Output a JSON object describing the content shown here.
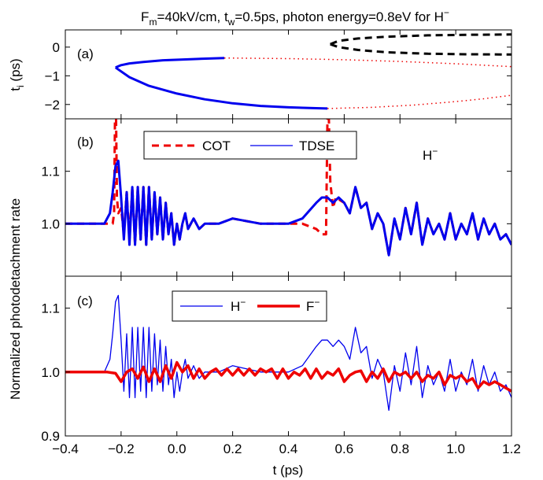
{
  "figure": {
    "title": {
      "p1": "F",
      "s1": "m",
      "p2": "=40kV/cm, t",
      "s2": "w",
      "p3": "=0.5ps, photon energy=0.8eV for H",
      "sup": "−"
    },
    "ylabel": "Normalized photodetachment rate"
  },
  "chart_data": [
    {
      "panel": "(a)",
      "type": "line",
      "xlim": [
        -0.4,
        1.2
      ],
      "ylim": [
        -2.5,
        0.6
      ],
      "yticks": [
        "−2",
        "−1",
        "0"
      ],
      "ylabel": {
        "main": "t",
        "sub": "i",
        "rest": " (ps)"
      },
      "series": [
        {
          "style": "solid-blue",
          "color": "#0000ee",
          "x": [
            0.17,
            0.05,
            -0.05,
            -0.12,
            -0.17,
            -0.2,
            -0.22
          ],
          "y": [
            -0.38,
            -0.42,
            -0.46,
            -0.52,
            -0.57,
            -0.63,
            -0.71
          ]
        },
        {
          "style": "solid-blue",
          "color": "#0000ee",
          "x": [
            -0.22,
            -0.17,
            -0.1,
            0.0,
            0.1,
            0.2,
            0.3,
            0.4,
            0.5,
            0.54
          ],
          "y": [
            -0.71,
            -1.05,
            -1.35,
            -1.62,
            -1.82,
            -1.96,
            -2.05,
            -2.1,
            -2.13,
            -2.14
          ]
        },
        {
          "style": "dotted-red",
          "color": "#ee0000",
          "x": [
            0.17,
            0.4,
            0.6,
            0.8,
            1.0,
            1.2
          ],
          "y": [
            -0.38,
            -0.4,
            -0.44,
            -0.5,
            -0.58,
            -0.68
          ]
        },
        {
          "style": "dotted-red",
          "color": "#ee0000",
          "x": [
            0.54,
            0.7,
            0.85,
            1.0,
            1.1,
            1.2
          ],
          "y": [
            -2.14,
            -2.1,
            -2.02,
            -1.9,
            -1.8,
            -1.68
          ]
        },
        {
          "style": "dashed-black",
          "color": "#000000",
          "x": [
            0.55,
            0.58,
            0.65,
            0.75,
            0.9,
            1.05,
            1.2
          ],
          "y": [
            0.1,
            0.22,
            0.3,
            0.36,
            0.41,
            0.43,
            0.44
          ]
        },
        {
          "style": "dashed-black",
          "color": "#000000",
          "x": [
            0.55,
            0.58,
            0.65,
            0.75,
            0.9,
            1.05,
            1.2
          ],
          "y": [
            0.1,
            0.0,
            -0.1,
            -0.18,
            -0.23,
            -0.25,
            -0.26
          ]
        }
      ]
    },
    {
      "panel": "(b)",
      "type": "line",
      "xlim": [
        -0.4,
        1.2
      ],
      "ylim": [
        0.9,
        1.2
      ],
      "yticks": [
        "1.0",
        "1.1"
      ],
      "annotation": {
        "main": "H",
        "sup": "−"
      },
      "legend": [
        "COT",
        "TDSE"
      ],
      "series": [
        {
          "name": "COT",
          "style": "dashed-red",
          "color": "#ee0000",
          "x": [
            -0.4,
            -0.3,
            -0.25,
            -0.23,
            -0.225,
            -0.222,
            -0.218,
            -0.215,
            -0.21,
            -0.2,
            -0.19,
            -0.18,
            -0.17,
            -0.16,
            -0.15,
            -0.14,
            -0.13,
            -0.12,
            -0.11,
            -0.1,
            -0.09,
            -0.08,
            -0.07,
            -0.06,
            -0.05,
            -0.04,
            -0.03,
            -0.02,
            -0.01,
            0.0,
            0.01,
            0.02,
            0.03,
            0.04,
            0.06,
            0.08,
            0.1,
            0.15,
            0.2,
            0.3,
            0.4,
            0.45,
            0.5,
            0.52,
            0.535,
            0.54,
            0.545,
            0.55,
            0.56,
            0.57,
            0.6,
            0.62,
            0.64,
            0.66,
            0.68,
            0.7,
            0.72,
            0.74,
            0.76,
            0.78,
            0.8,
            0.82,
            0.84,
            0.86,
            0.88,
            0.9,
            0.92,
            0.94,
            0.96,
            0.98,
            1.0,
            1.02,
            1.04,
            1.06,
            1.08,
            1.1,
            1.12,
            1.14,
            1.16,
            1.18,
            1.2
          ],
          "y": [
            1.0,
            1.0,
            1.0,
            1.0,
            1.02,
            1.2,
            1.2,
            1.05,
            1.02,
            1.03,
            0.98,
            1.06,
            0.97,
            1.07,
            0.96,
            1.07,
            0.97,
            1.07,
            0.96,
            1.07,
            0.97,
            1.06,
            0.98,
            1.05,
            0.97,
            1.04,
            0.98,
            1.02,
            0.96,
            1.0,
            0.97,
            1.0,
            1.02,
            0.99,
            1.01,
            0.99,
            1.0,
            1.0,
            1.01,
            1.0,
            1.0,
            1.0,
            0.99,
            0.98,
            0.98,
            1.2,
            1.2,
            1.08,
            1.03,
            1.05,
            1.04,
            1.02,
            1.07,
            1.03,
            1.04,
            0.99,
            1.02,
            1.0,
            0.94,
            1.01,
            0.97,
            1.03,
            0.98,
            1.04,
            0.96,
            1.01,
            0.98,
            1.0,
            0.97,
            1.02,
            0.97,
            1.0,
            0.98,
            1.02,
            0.97,
            1.01,
            0.98,
            1.0,
            0.97,
            0.98,
            0.96
          ]
        },
        {
          "name": "TDSE",
          "style": "solid-blue",
          "color": "#0000ee",
          "x": [
            -0.4,
            -0.3,
            -0.26,
            -0.24,
            -0.23,
            -0.22,
            -0.21,
            -0.2,
            -0.19,
            -0.18,
            -0.17,
            -0.16,
            -0.15,
            -0.14,
            -0.13,
            -0.12,
            -0.11,
            -0.1,
            -0.09,
            -0.08,
            -0.07,
            -0.06,
            -0.05,
            -0.04,
            -0.03,
            -0.02,
            -0.01,
            0.0,
            0.01,
            0.02,
            0.03,
            0.04,
            0.06,
            0.08,
            0.1,
            0.15,
            0.2,
            0.3,
            0.4,
            0.45,
            0.5,
            0.52,
            0.54,
            0.56,
            0.58,
            0.6,
            0.62,
            0.64,
            0.66,
            0.68,
            0.7,
            0.72,
            0.74,
            0.76,
            0.78,
            0.8,
            0.82,
            0.84,
            0.86,
            0.88,
            0.9,
            0.92,
            0.94,
            0.96,
            0.98,
            1.0,
            1.02,
            1.04,
            1.06,
            1.08,
            1.1,
            1.12,
            1.14,
            1.16,
            1.18,
            1.2
          ],
          "y": [
            1.0,
            1.0,
            1.0,
            1.02,
            1.06,
            1.11,
            1.12,
            1.05,
            0.97,
            1.06,
            0.96,
            1.07,
            0.96,
            1.07,
            0.97,
            1.07,
            0.96,
            1.07,
            0.97,
            1.06,
            0.98,
            1.05,
            0.97,
            1.04,
            0.98,
            1.02,
            0.96,
            1.0,
            0.97,
            1.0,
            1.02,
            0.99,
            1.01,
            0.99,
            1.0,
            1.0,
            1.01,
            1.0,
            1.0,
            1.01,
            1.04,
            1.05,
            1.05,
            1.04,
            1.05,
            1.04,
            1.02,
            1.07,
            1.03,
            1.04,
            0.99,
            1.02,
            1.0,
            0.94,
            1.01,
            0.97,
            1.03,
            0.98,
            1.04,
            0.96,
            1.01,
            0.98,
            1.0,
            0.97,
            1.02,
            0.97,
            1.0,
            0.98,
            1.02,
            0.97,
            1.01,
            0.98,
            1.0,
            0.97,
            0.98,
            0.96
          ]
        }
      ]
    },
    {
      "panel": "(c)",
      "type": "line",
      "xlim": [
        -0.4,
        1.2
      ],
      "ylim": [
        0.9,
        1.15
      ],
      "yticks": [
        "0.9",
        "1.0",
        "1.1"
      ],
      "xticks": [
        "−0.4",
        "−0.2",
        "0.0",
        "0.2",
        "0.4",
        "0.6",
        "0.8",
        "1.0",
        "1.2"
      ],
      "xlabel": "t (ps)",
      "legend": [
        {
          "main": "H",
          "sup": "−"
        },
        {
          "main": "F",
          "sup": "−"
        }
      ],
      "series": [
        {
          "name": "H−",
          "style": "solid-blue-thin",
          "color": "#0000ee",
          "x": [
            -0.4,
            -0.3,
            -0.26,
            -0.24,
            -0.23,
            -0.22,
            -0.21,
            -0.2,
            -0.19,
            -0.18,
            -0.17,
            -0.16,
            -0.15,
            -0.14,
            -0.13,
            -0.12,
            -0.11,
            -0.1,
            -0.09,
            -0.08,
            -0.07,
            -0.06,
            -0.05,
            -0.04,
            -0.03,
            -0.02,
            -0.01,
            0.0,
            0.01,
            0.02,
            0.03,
            0.04,
            0.06,
            0.08,
            0.1,
            0.15,
            0.2,
            0.3,
            0.4,
            0.45,
            0.5,
            0.52,
            0.54,
            0.56,
            0.58,
            0.6,
            0.62,
            0.64,
            0.66,
            0.68,
            0.7,
            0.72,
            0.74,
            0.76,
            0.78,
            0.8,
            0.82,
            0.84,
            0.86,
            0.88,
            0.9,
            0.92,
            0.94,
            0.96,
            0.98,
            1.0,
            1.02,
            1.04,
            1.06,
            1.08,
            1.1,
            1.12,
            1.14,
            1.16,
            1.18,
            1.2
          ],
          "y": [
            1.0,
            1.0,
            1.0,
            1.02,
            1.06,
            1.11,
            1.12,
            1.05,
            0.97,
            1.06,
            0.96,
            1.07,
            0.96,
            1.07,
            0.97,
            1.07,
            0.96,
            1.07,
            0.97,
            1.06,
            0.98,
            1.05,
            0.97,
            1.04,
            0.98,
            1.02,
            0.96,
            1.0,
            0.97,
            1.0,
            1.02,
            0.99,
            1.01,
            0.99,
            1.0,
            1.0,
            1.01,
            1.0,
            1.0,
            1.01,
            1.04,
            1.05,
            1.05,
            1.04,
            1.05,
            1.04,
            1.02,
            1.07,
            1.03,
            1.04,
            0.99,
            1.02,
            1.0,
            0.94,
            1.01,
            0.97,
            1.03,
            0.98,
            1.04,
            0.96,
            1.01,
            0.98,
            1.0,
            0.97,
            1.02,
            0.97,
            1.0,
            0.98,
            1.02,
            0.97,
            1.01,
            0.98,
            1.0,
            0.97,
            0.98,
            0.96
          ]
        },
        {
          "name": "F−",
          "style": "solid-red-thick",
          "color": "#ee0000",
          "x": [
            -0.4,
            -0.3,
            -0.25,
            -0.22,
            -0.2,
            -0.18,
            -0.16,
            -0.14,
            -0.12,
            -0.1,
            -0.08,
            -0.06,
            -0.04,
            -0.02,
            0.0,
            0.02,
            0.04,
            0.06,
            0.08,
            0.1,
            0.12,
            0.14,
            0.16,
            0.18,
            0.2,
            0.22,
            0.24,
            0.26,
            0.28,
            0.3,
            0.32,
            0.34,
            0.36,
            0.38,
            0.4,
            0.42,
            0.44,
            0.46,
            0.48,
            0.5,
            0.52,
            0.54,
            0.56,
            0.58,
            0.6,
            0.62,
            0.64,
            0.66,
            0.68,
            0.7,
            0.72,
            0.74,
            0.76,
            0.78,
            0.8,
            0.82,
            0.84,
            0.86,
            0.88,
            0.9,
            0.92,
            0.94,
            0.96,
            0.98,
            1.0,
            1.02,
            1.04,
            1.06,
            1.08,
            1.1,
            1.12,
            1.14,
            1.16,
            1.18,
            1.2
          ],
          "y": [
            1.0,
            1.0,
            1.0,
            0.998,
            0.985,
            1.0,
            1.005,
            0.99,
            1.008,
            0.985,
            1.005,
            0.985,
            1.01,
            0.99,
            1.015,
            1.0,
            1.01,
            0.99,
            1.005,
            0.99,
            1.0,
            1.005,
            0.995,
            1.005,
            0.995,
            1.005,
            0.995,
            1.005,
            0.995,
            1.005,
            1.0,
            1.005,
            0.99,
            1.005,
            0.99,
            1.0,
            0.995,
            1.005,
            0.99,
            1.005,
            0.99,
            1.0,
            0.995,
            1.005,
            0.985,
            0.995,
            1.0,
            1.002,
            0.985,
            1.0,
            0.99,
            1.005,
            0.985,
            1.0,
            0.995,
            1.0,
            0.99,
            1.0,
            0.985,
            0.995,
            0.99,
            1.0,
            0.98,
            0.995,
            0.99,
            0.995,
            0.985,
            0.99,
            0.975,
            0.985,
            0.98,
            0.985,
            0.98,
            0.975,
            0.97
          ]
        }
      ]
    }
  ]
}
